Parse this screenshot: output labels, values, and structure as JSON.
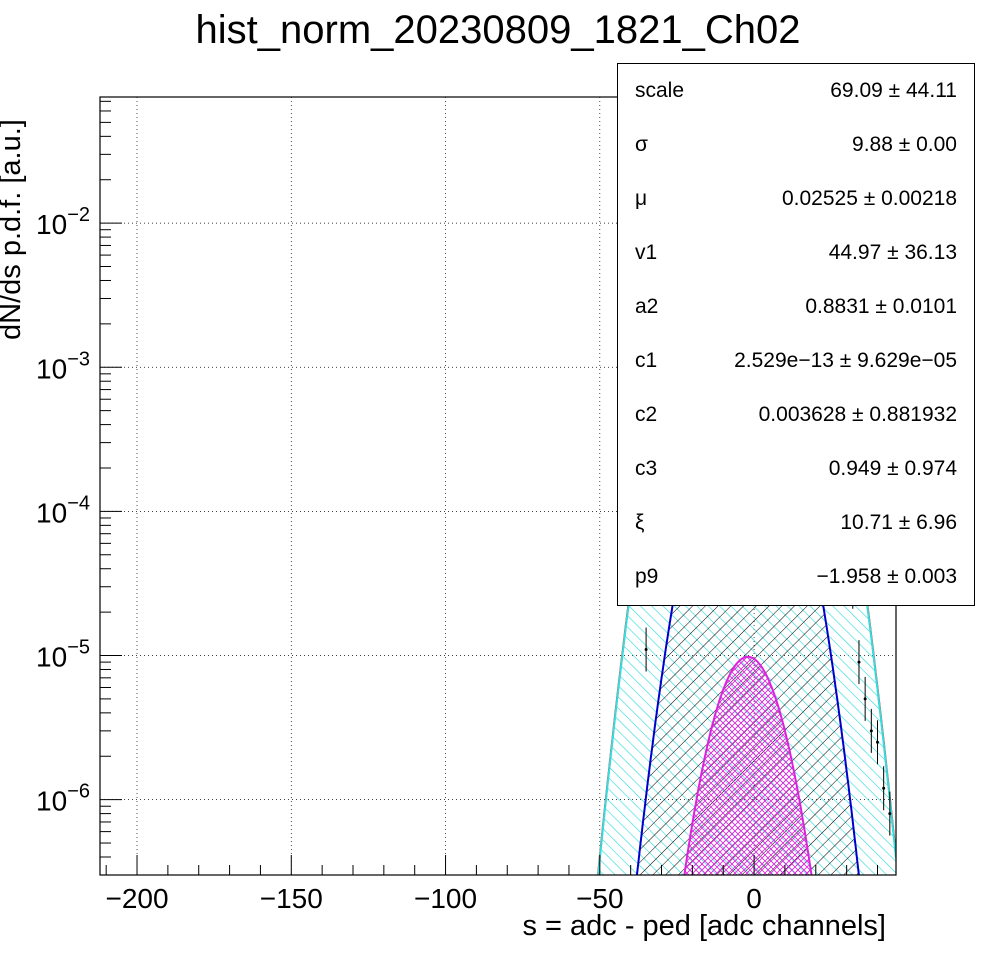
{
  "title": "hist_norm_20230809_1821_Ch02",
  "stats": [
    {
      "name": "scale",
      "value": "69.09 ± 44.11"
    },
    {
      "name": "σ",
      "value": "9.88 ± 0.00"
    },
    {
      "name": "μ",
      "value": "0.02525 ± 0.00218"
    },
    {
      "name": "v1",
      "value": "44.97 ± 36.13"
    },
    {
      "name": "a2",
      "value": "0.8831 ± 0.0101"
    },
    {
      "name": "c1",
      "value": "2.529e−13 ± 9.629e−05"
    },
    {
      "name": "c2",
      "value": "0.003628 ± 0.881932"
    },
    {
      "name": "c3",
      "value": "0.949 ± 0.974"
    },
    {
      "name": "ξ",
      "value": "10.71 ± 6.96"
    },
    {
      "name": "p9",
      "value": "−1.958 ± 0.003"
    }
  ],
  "chart_data": {
    "type": "line",
    "title": "hist_norm_20230809_1821_Ch02",
    "xlabel": "s = adc - ped [adc channels]",
    "ylabel": "dN/ds p.d.f. [a.u.]",
    "xlim": [
      -212,
      46
    ],
    "ylim": [
      3e-07,
      0.075
    ],
    "yscale": "log",
    "grid": true,
    "x_ticks": [
      {
        "value": -200,
        "label": "−200"
      },
      {
        "value": -150,
        "label": "−150"
      },
      {
        "value": -100,
        "label": "−100"
      },
      {
        "value": -50,
        "label": "−50"
      },
      {
        "value": 0,
        "label": "0"
      }
    ],
    "y_ticks": [
      {
        "value": 0.01,
        "base": "10",
        "exp": "−2"
      },
      {
        "value": 0.001,
        "base": "10",
        "exp": "−3"
      },
      {
        "value": 0.0001,
        "base": "10",
        "exp": "−4"
      },
      {
        "value": 1e-05,
        "base": "10",
        "exp": "−5"
      },
      {
        "value": 1e-06,
        "base": "10",
        "exp": "−6"
      }
    ],
    "series": [
      {
        "color": "#ff0000",
        "hatch": "none",
        "peak_x": -2,
        "peak_y": 0.0405,
        "sigma": 10.0
      },
      {
        "color": "#33dddd",
        "hatch": "diag",
        "peak_x": -2,
        "peak_y": 0.0395,
        "sigma": 10.0
      },
      {
        "color": "#0000cc",
        "hatch": "diag-black",
        "peak_x": -2,
        "peak_y": 0.00088,
        "sigma": 9.0
      },
      {
        "color": "#dd22dd",
        "hatch": "cross",
        "peak_x": -2,
        "peak_y": 9.8e-06,
        "sigma": 7.8
      }
    ],
    "histogram_points": [
      {
        "x": -36,
        "y": 3.5e-05
      },
      {
        "x": -35,
        "y": 1.1e-05
      },
      {
        "x": 32,
        "y": 3e-05
      },
      {
        "x": 34,
        "y": 9e-06
      },
      {
        "x": 36,
        "y": 5e-06
      },
      {
        "x": 38,
        "y": 3e-06
      },
      {
        "x": 40,
        "y": 2.5e-06
      },
      {
        "x": 42,
        "y": 1.2e-06
      },
      {
        "x": 44,
        "y": 8e-07
      }
    ]
  }
}
